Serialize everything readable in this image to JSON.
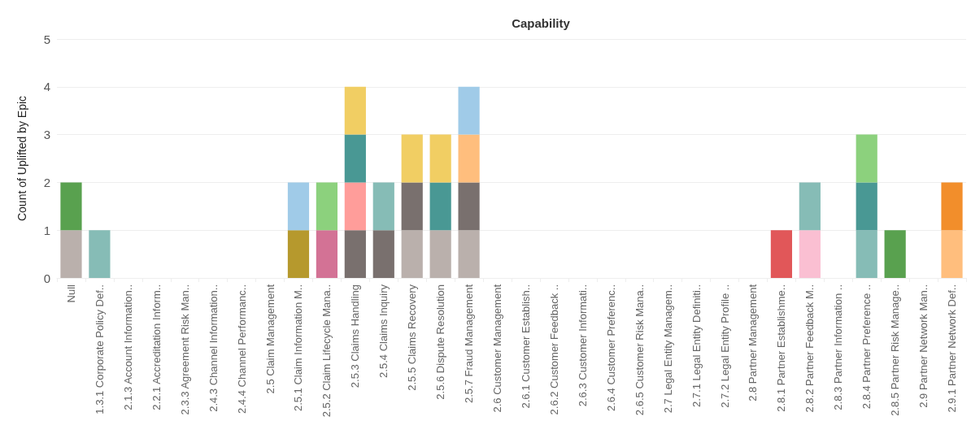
{
  "chart_data": {
    "type": "bar",
    "title": "Capability",
    "ylabel": "Count of Uplifted by Epic",
    "stacked": true,
    "grid": "y",
    "ylim": [
      0,
      5
    ],
    "yticks": [
      0,
      1,
      2,
      3,
      4,
      5
    ],
    "categories": [
      "Null",
      "1.3.1 Corporate Policy Def..",
      "2.1.3 Account Information..",
      "2.2.1 Accreditation Inform..",
      "2.3.3 Agreement Risk Man..",
      "2.4.3 Channel Information..",
      "2.4.4 Channel Performanc..",
      "2.5 Claim Management",
      "2.5.1 Claim Information M..",
      "2.5.2 Claim Lifecycle Mana..",
      "2.5.3 Claims Handling",
      "2.5.4 Claims Inquiry",
      "2.5.5 Claims Recovery",
      "2.5.6 Dispute Resolution",
      "2.5.7 Fraud Management",
      "2.6 Customer Management",
      "2.6.1 Customer Establish..",
      "2.6.2 Customer Feedback ..",
      "2.6.3 Customer Informati..",
      "2.6.4 Customer Preferenc..",
      "2.6.5 Customer Risk Mana..",
      "2.7 Legal Entity Managem..",
      "2.7.1 Legal Entity Definiti..",
      "2.7.2 Legal Entity Profile ..",
      "2.8 Partner Management",
      "2.8.1 Partner Establishme..",
      "2.8.2 Partner Feedback M..",
      "2.8.3 Partner Information ..",
      "2.8.4 Partner Preference ..",
      "2.8.5 Partner Risk Manage..",
      "2.9 Partner Network Man..",
      "2.9.1 Partner Network Def.."
    ],
    "series": [
      {
        "color": "#bab0ac",
        "values": [
          1,
          null,
          null,
          null,
          null,
          null,
          null,
          null,
          null,
          null,
          null,
          null,
          1,
          1,
          1,
          null,
          null,
          null,
          null,
          null,
          null,
          null,
          null,
          null,
          null,
          null,
          null,
          null,
          null,
          null,
          null,
          null
        ]
      },
      {
        "color": "#59a14f",
        "values": [
          1,
          null,
          null,
          null,
          null,
          null,
          null,
          null,
          null,
          null,
          null,
          null,
          null,
          null,
          null,
          null,
          null,
          null,
          null,
          null,
          null,
          null,
          null,
          null,
          null,
          null,
          null,
          null,
          null,
          1,
          null,
          null
        ]
      },
      {
        "color": "#b6992d",
        "values": [
          null,
          null,
          null,
          null,
          null,
          null,
          null,
          null,
          1,
          null,
          null,
          null,
          null,
          null,
          null,
          null,
          null,
          null,
          null,
          null,
          null,
          null,
          null,
          null,
          null,
          null,
          null,
          null,
          null,
          null,
          null,
          null
        ]
      },
      {
        "color": "#d37295",
        "values": [
          null,
          null,
          null,
          null,
          null,
          null,
          null,
          null,
          null,
          1,
          null,
          null,
          null,
          null,
          null,
          null,
          null,
          null,
          null,
          null,
          null,
          null,
          null,
          null,
          null,
          null,
          null,
          null,
          null,
          null,
          null,
          null
        ]
      },
      {
        "color": "#fabfd2",
        "values": [
          null,
          null,
          null,
          null,
          null,
          null,
          null,
          null,
          null,
          null,
          null,
          null,
          null,
          null,
          null,
          null,
          null,
          null,
          null,
          null,
          null,
          null,
          null,
          null,
          null,
          null,
          1,
          null,
          null,
          null,
          null,
          null
        ]
      },
      {
        "color": "#79706e",
        "values": [
          null,
          null,
          null,
          null,
          null,
          null,
          null,
          null,
          null,
          null,
          1,
          1,
          1,
          null,
          1,
          null,
          null,
          null,
          null,
          null,
          null,
          null,
          null,
          null,
          null,
          null,
          null,
          null,
          null,
          null,
          null,
          null
        ]
      },
      {
        "color": "#86bcb6",
        "values": [
          null,
          1,
          null,
          null,
          null,
          null,
          null,
          null,
          null,
          null,
          null,
          1,
          null,
          null,
          null,
          null,
          null,
          null,
          null,
          null,
          null,
          null,
          null,
          null,
          null,
          null,
          1,
          null,
          1,
          null,
          null,
          null
        ]
      },
      {
        "color": "#ff9d9a",
        "values": [
          null,
          null,
          null,
          null,
          null,
          null,
          null,
          null,
          null,
          null,
          1,
          null,
          null,
          null,
          null,
          null,
          null,
          null,
          null,
          null,
          null,
          null,
          null,
          null,
          null,
          null,
          null,
          null,
          null,
          null,
          null,
          null
        ]
      },
      {
        "color": "#499894",
        "values": [
          null,
          null,
          null,
          null,
          null,
          null,
          null,
          null,
          null,
          null,
          1,
          null,
          null,
          1,
          null,
          null,
          null,
          null,
          null,
          null,
          null,
          null,
          null,
          null,
          null,
          null,
          null,
          null,
          1,
          null,
          null,
          null
        ]
      },
      {
        "color": "#8cd17d",
        "values": [
          null,
          null,
          null,
          null,
          null,
          null,
          null,
          null,
          null,
          1,
          null,
          null,
          null,
          null,
          null,
          null,
          null,
          null,
          null,
          null,
          null,
          null,
          null,
          null,
          null,
          null,
          null,
          null,
          1,
          null,
          null,
          null
        ]
      },
      {
        "color": "#f1ce63",
        "values": [
          null,
          null,
          null,
          null,
          null,
          null,
          null,
          null,
          null,
          null,
          1,
          null,
          1,
          1,
          null,
          null,
          null,
          null,
          null,
          null,
          null,
          null,
          null,
          null,
          null,
          null,
          null,
          null,
          null,
          null,
          null,
          null
        ]
      },
      {
        "color": "#ffbe7d",
        "values": [
          null,
          null,
          null,
          null,
          null,
          null,
          null,
          null,
          null,
          null,
          null,
          null,
          null,
          null,
          1,
          null,
          null,
          null,
          null,
          null,
          null,
          null,
          null,
          null,
          null,
          null,
          null,
          null,
          null,
          null,
          null,
          1
        ]
      },
      {
        "color": "#a0cbe8",
        "values": [
          null,
          null,
          null,
          null,
          null,
          null,
          null,
          null,
          1,
          null,
          null,
          null,
          null,
          null,
          1,
          null,
          null,
          null,
          null,
          null,
          null,
          null,
          null,
          null,
          null,
          null,
          null,
          null,
          null,
          null,
          null,
          null
        ]
      },
      {
        "color": "#e15759",
        "values": [
          null,
          null,
          null,
          null,
          null,
          null,
          null,
          null,
          null,
          null,
          null,
          null,
          null,
          null,
          null,
          null,
          null,
          null,
          null,
          null,
          null,
          null,
          null,
          null,
          null,
          1,
          null,
          null,
          null,
          null,
          null,
          null
        ]
      },
      {
        "color": "#f28e2b",
        "values": [
          null,
          null,
          null,
          null,
          null,
          null,
          null,
          null,
          null,
          null,
          null,
          null,
          null,
          null,
          null,
          null,
          null,
          null,
          null,
          null,
          null,
          null,
          null,
          null,
          null,
          null,
          null,
          null,
          null,
          null,
          null,
          1
        ]
      }
    ]
  }
}
